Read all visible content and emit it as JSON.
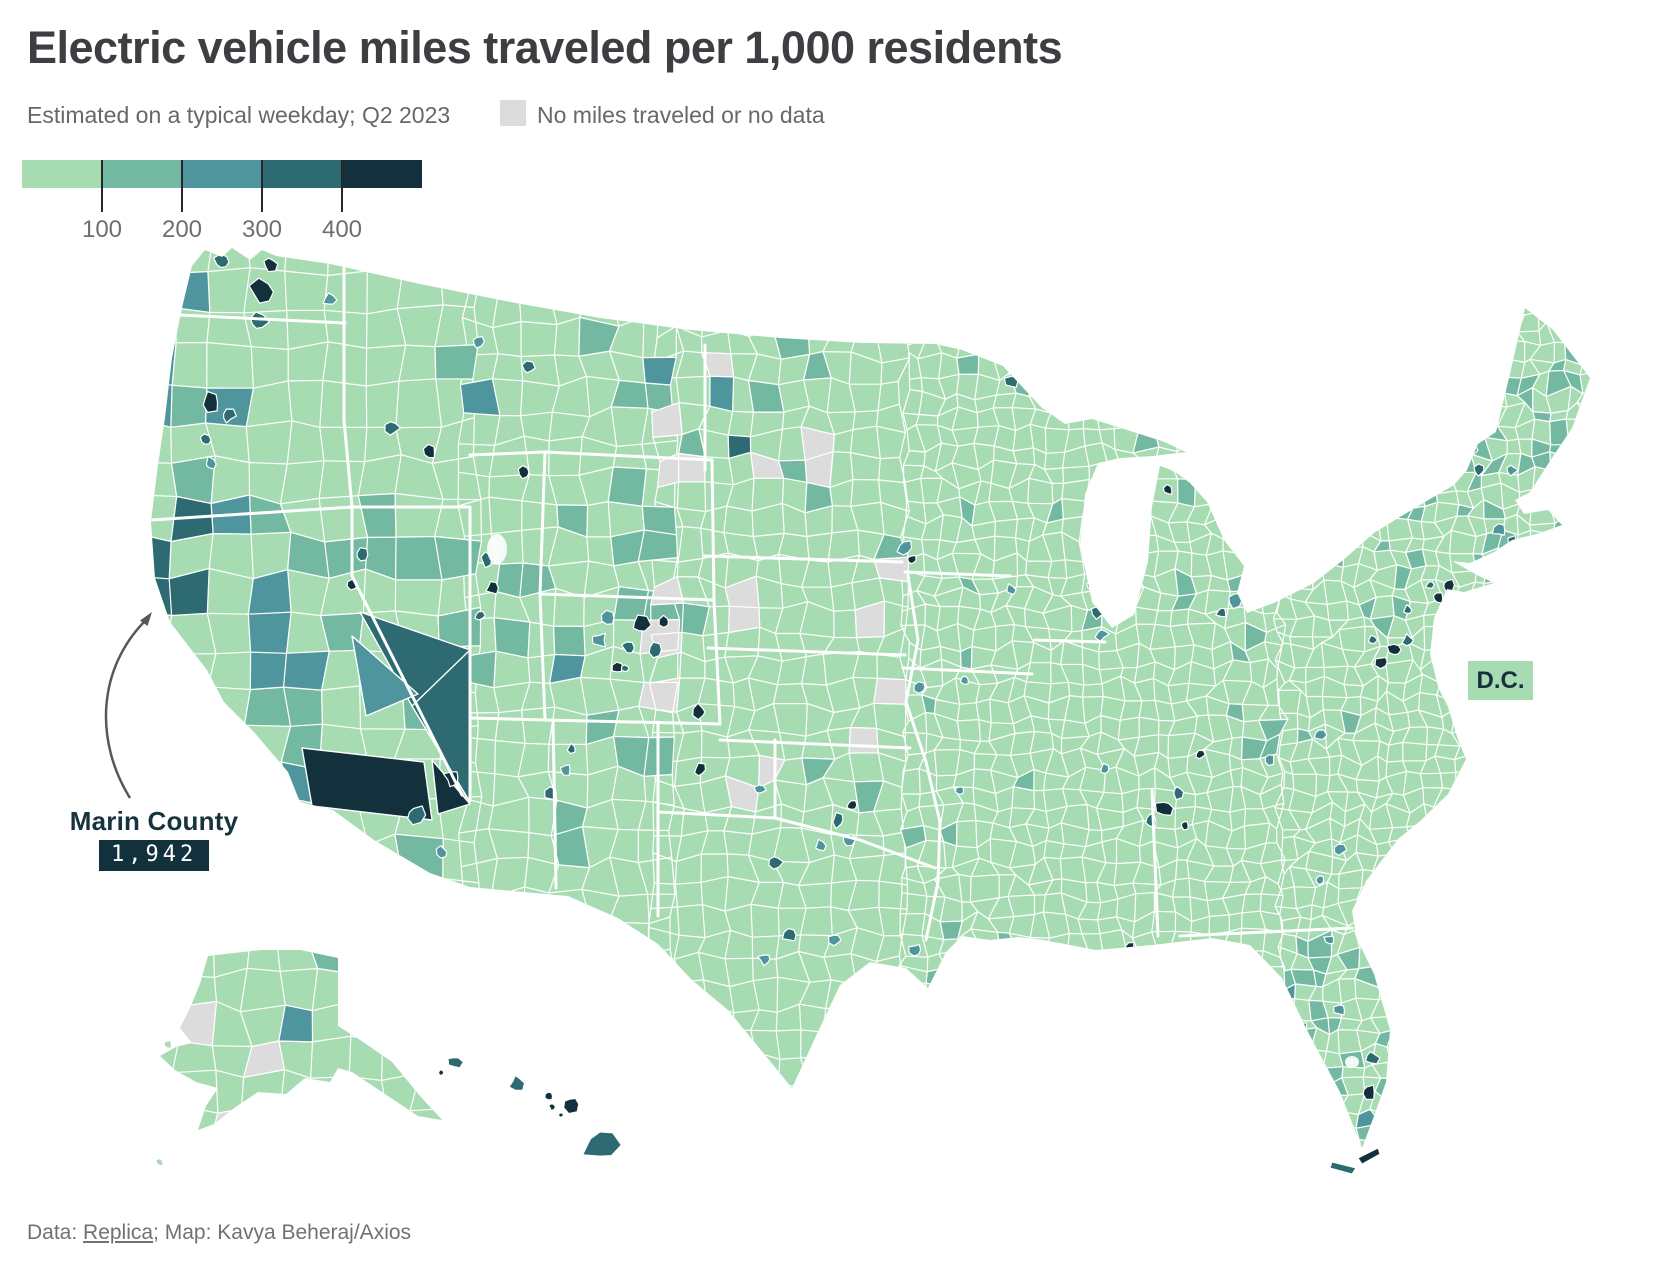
{
  "title": "Electric vehicle miles traveled per 1,000 residents",
  "subtitle": "Estimated on a typical weekday; Q2 2023",
  "legend": {
    "no_data_label": "No miles traveled or no data",
    "no_data_color": "#dcdcdc",
    "bin_colors": [
      "#a7dbb1",
      "#73b9a1",
      "#4e959d",
      "#2d6a72",
      "#12313d"
    ],
    "tick_labels": [
      "100",
      "200",
      "300",
      "400"
    ],
    "tick_color": "#26262b"
  },
  "annotations": {
    "marin": {
      "label": "Marin County",
      "value": "1,942",
      "badge_bg": "#12313d",
      "badge_text_color": "#ffffff",
      "arrow_color": "#58585c"
    },
    "dc": {
      "label": "D.C.",
      "badge_bg": "#a7dbb1",
      "text_color": "#14313c"
    }
  },
  "footer": {
    "data_prefix": "Data: ",
    "source_link_label": "Replica",
    "credit": "; Map: Kavya Beheraj/Axios"
  },
  "map": {
    "county_border_color": "#ffffff",
    "state_border_color": "#ffffff",
    "water_color": "#ffffff"
  },
  "chart_data": {
    "type": "choropleth_map",
    "title": "Electric vehicle miles traveled per 1,000 residents",
    "subtitle": "Estimated on a typical weekday; Q2 2023",
    "geography": "United States counties (contiguous U.S. plus Alaska, Hawaii and D.C.)",
    "metric": "Electric vehicle miles traveled per 1,000 residents on a typical weekday",
    "period": "Q2 2023",
    "scale": {
      "type": "threshold",
      "bin_edges": [
        100,
        200,
        300,
        400
      ],
      "bin_labels": [
        "under 100",
        "100-200",
        "200-300",
        "300-400",
        "over 400"
      ],
      "bin_colors": [
        "#a7dbb1",
        "#73b9a1",
        "#4e959d",
        "#2d6a72",
        "#12313d"
      ],
      "no_data_label": "No miles traveled or no data",
      "no_data_color": "#dcdcdc"
    },
    "annotated_values": [
      {
        "name": "Marin County, California",
        "value": 1942
      },
      {
        "name": "D.C.",
        "note": "labeled with badge in lowest color bin"
      }
    ],
    "pattern_notes": "Highest values cluster on the West Coast (coastal California, Puget Sound, Portland), Nevada, mountain resort counties, Hawaii and South Florida metros; most of the Midwest, South and East are in the lowest bin; Great Plains and Alaska show many no-data counties.",
    "source": "Replica",
    "credit": "Map: Kavya Beheraj/Axios"
  }
}
